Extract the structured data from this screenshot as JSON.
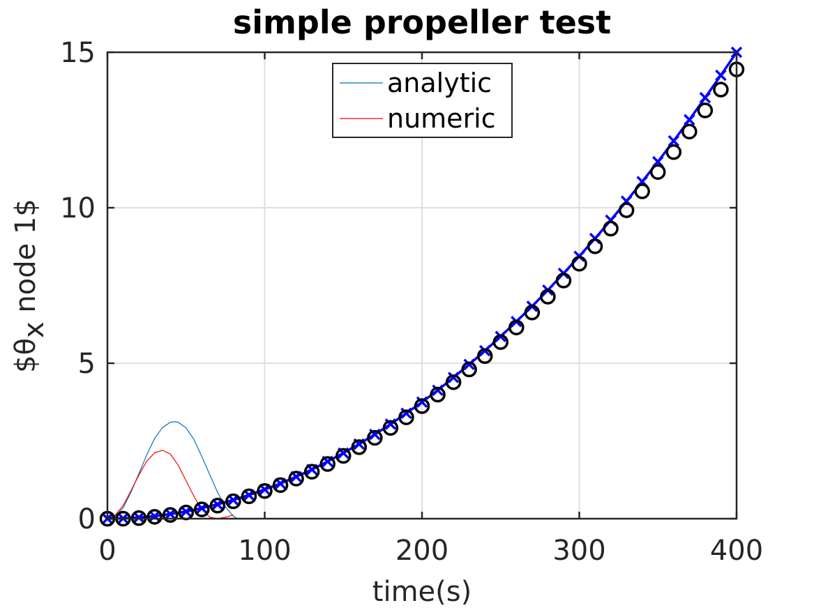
{
  "chart_data": {
    "type": "line",
    "title": "simple propeller test",
    "xlabel": "time(s)",
    "ylabel": "$\\theta_x node 1$",
    "ylabel_main": "$θ",
    "ylabel_sub": "x",
    "ylabel_rest": " node 1$",
    "xlim": [
      0,
      400
    ],
    "ylim": [
      0,
      15
    ],
    "xticks": [
      0,
      100,
      200,
      300,
      400
    ],
    "yticks": [
      0,
      5,
      10,
      15
    ],
    "xtick_labels": [
      "0",
      "100",
      "200",
      "300",
      "400"
    ],
    "ytick_labels": [
      "0",
      "5",
      "10",
      "15"
    ],
    "grid": true,
    "legend_position": "top-center",
    "legend": [
      "analytic",
      "numeric"
    ],
    "colors": {
      "analytic": "#0072BD",
      "numeric": "#FF0000",
      "crosses": "#0000FF",
      "circles": "#000000",
      "axis": "#262626",
      "grid": "#DFDFDF"
    },
    "series": [
      {
        "name": "analytic",
        "style": "thin-line",
        "x": [
          0,
          5,
          10,
          15,
          20,
          25,
          30,
          35,
          40,
          43,
          45,
          50,
          55,
          60,
          65,
          70,
          75,
          80,
          83
        ],
        "y": [
          0,
          0.08,
          0.35,
          0.85,
          1.45,
          2.05,
          2.58,
          2.93,
          3.1,
          3.12,
          3.1,
          2.92,
          2.55,
          2.0,
          1.42,
          0.85,
          0.38,
          0.08,
          0
        ]
      },
      {
        "name": "numeric",
        "style": "thin-line",
        "x": [
          0,
          5,
          10,
          15,
          20,
          25,
          30,
          35,
          40,
          45,
          50,
          55,
          60,
          65,
          70,
          75,
          80
        ],
        "y": [
          0,
          0.12,
          0.42,
          0.9,
          1.4,
          1.85,
          2.12,
          2.2,
          2.08,
          1.72,
          1.22,
          0.72,
          0.3,
          0.05,
          0,
          0.05,
          0.12
        ]
      },
      {
        "style": "thick-line-crosses",
        "x": [
          0,
          10,
          20,
          30,
          40,
          50,
          60,
          70,
          80,
          90,
          100,
          110,
          120,
          130,
          140,
          150,
          160,
          170,
          180,
          190,
          200,
          210,
          220,
          230,
          240,
          250,
          260,
          270,
          280,
          290,
          300,
          310,
          320,
          330,
          340,
          350,
          360,
          370,
          380,
          390,
          400
        ],
        "y": [
          0,
          0.01,
          0.04,
          0.08,
          0.15,
          0.23,
          0.34,
          0.46,
          0.6,
          0.76,
          0.94,
          1.13,
          1.35,
          1.58,
          1.84,
          2.11,
          2.4,
          2.71,
          3.04,
          3.39,
          3.75,
          4.13,
          4.54,
          4.96,
          5.4,
          5.86,
          6.34,
          6.83,
          7.35,
          7.89,
          8.44,
          9.01,
          9.6,
          10.21,
          10.84,
          11.48,
          12.15,
          12.83,
          13.54,
          14.26,
          15.0
        ]
      },
      {
        "style": "circle-markers",
        "x": [
          0,
          10,
          20,
          30,
          40,
          50,
          60,
          70,
          80,
          90,
          100,
          110,
          120,
          130,
          140,
          150,
          160,
          170,
          180,
          190,
          200,
          210,
          220,
          230,
          240,
          250,
          260,
          270,
          280,
          290,
          300,
          310,
          320,
          330,
          340,
          350,
          360,
          370,
          380,
          390,
          400
        ],
        "y": [
          0,
          0.0,
          0.02,
          0.06,
          0.12,
          0.2,
          0.3,
          0.42,
          0.56,
          0.72,
          0.89,
          1.08,
          1.29,
          1.51,
          1.76,
          2.02,
          2.3,
          2.6,
          2.92,
          3.26,
          3.62,
          3.99,
          4.39,
          4.8,
          5.23,
          5.68,
          6.15,
          6.63,
          7.14,
          7.66,
          8.2,
          8.76,
          9.33,
          9.92,
          10.53,
          11.15,
          11.79,
          12.45,
          13.13,
          13.8,
          14.45
        ]
      }
    ]
  }
}
